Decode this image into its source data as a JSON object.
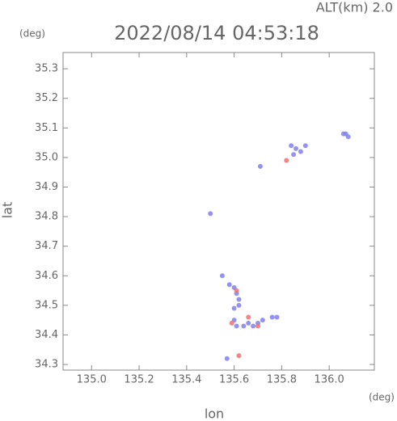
{
  "chart_data": {
    "type": "scatter",
    "title": "2022/08/14 04:53:18",
    "subtitle": "ALT(km) 2.0",
    "y_unit": "(deg)",
    "x_unit": "(deg)",
    "xlabel": "lon",
    "ylabel": "lat",
    "xlim": [
      134.88,
      136.19
    ],
    "ylim": [
      34.281,
      35.355
    ],
    "xticks": [
      {
        "value": 135,
        "label": "135.0"
      },
      135.2,
      135.4,
      135.6,
      135.8,
      {
        "value": 136,
        "label": "136.0"
      }
    ],
    "yticks": [
      34.3,
      34.4,
      34.5,
      34.6,
      34.7,
      34.8,
      34.9,
      {
        "value": 35,
        "label": "35.0"
      },
      35.1,
      35.2,
      35.3
    ],
    "grid": false,
    "series": [
      {
        "color": "#8080f0",
        "x": [
          135.84,
          135.86,
          135.88,
          135.85,
          136.07,
          136.08,
          136.06,
          135.71,
          135.5,
          135.58,
          135.6,
          135.61,
          135.62,
          135.6,
          135.62,
          135.6,
          135.61,
          135.66,
          135.68,
          135.7,
          135.72,
          135.76,
          135.78,
          135.64,
          135.57,
          135.55,
          135.9
        ],
        "y": [
          35.04,
          35.03,
          35.02,
          35.01,
          35.08,
          35.07,
          35.08,
          34.97,
          34.81,
          34.57,
          34.56,
          34.54,
          34.52,
          34.49,
          34.5,
          34.45,
          34.43,
          34.44,
          34.43,
          34.44,
          34.45,
          34.46,
          34.46,
          34.43,
          34.32,
          34.6,
          35.04
        ]
      },
      {
        "color": "#f07070",
        "x": [
          135.82,
          135.59,
          135.66,
          135.61,
          135.62,
          135.7
        ],
        "y": [
          34.99,
          34.44,
          34.46,
          34.55,
          34.33,
          34.43
        ]
      }
    ]
  }
}
